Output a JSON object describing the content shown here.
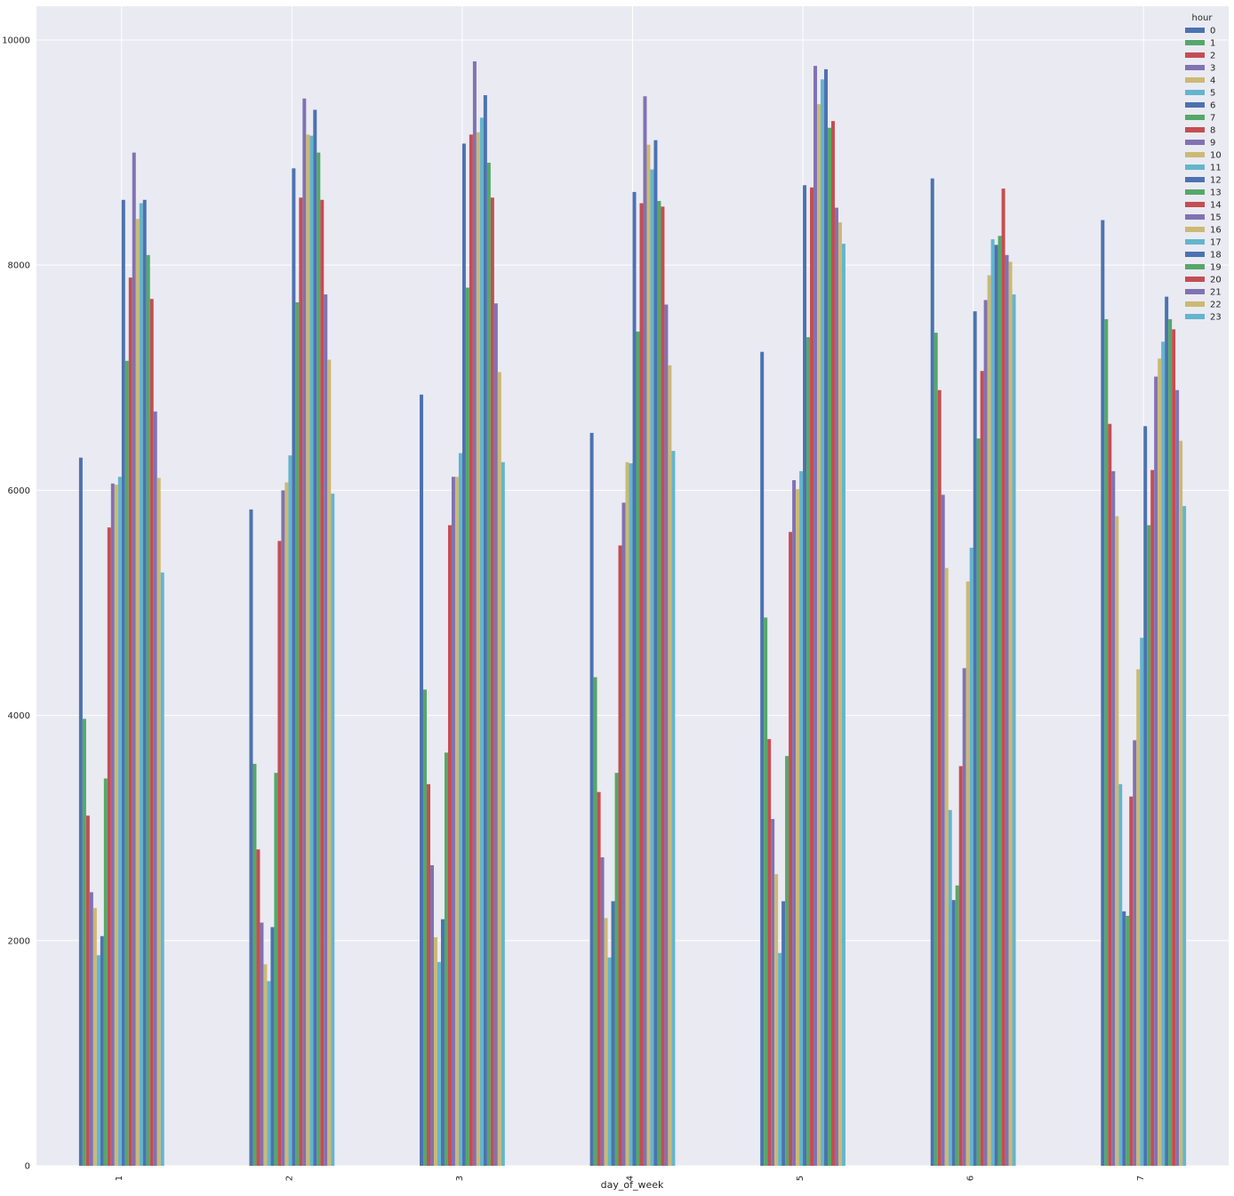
{
  "chart_data": {
    "type": "bar",
    "xlabel": "day_of_week",
    "ylabel": "",
    "ylim": [
      0,
      10300
    ],
    "yticks": [
      0,
      2000,
      4000,
      6000,
      8000,
      10000
    ],
    "grid": true,
    "legend_title": "hour",
    "legend_position": "top-right",
    "palette": [
      "#4c72b0",
      "#55a868",
      "#c44e52",
      "#8172b2",
      "#ccb974",
      "#64b5cd"
    ],
    "categories": [
      "1",
      "2",
      "3",
      "4",
      "5",
      "6",
      "7"
    ],
    "series": [
      {
        "name": "0",
        "values": [
          6290,
          5830,
          6850,
          6510,
          7230,
          8770,
          8400
        ]
      },
      {
        "name": "1",
        "values": [
          3970,
          3570,
          4230,
          4340,
          4870,
          7400,
          7520
        ]
      },
      {
        "name": "2",
        "values": [
          3110,
          2810,
          3390,
          3320,
          3790,
          6890,
          6590
        ]
      },
      {
        "name": "3",
        "values": [
          2430,
          2160,
          2670,
          2740,
          3080,
          5960,
          6170
        ]
      },
      {
        "name": "4",
        "values": [
          2290,
          1790,
          2030,
          2200,
          2590,
          5310,
          5770
        ]
      },
      {
        "name": "5",
        "values": [
          1870,
          1640,
          1810,
          1850,
          1890,
          3160,
          3390
        ]
      },
      {
        "name": "6",
        "values": [
          2040,
          2120,
          2190,
          2350,
          2350,
          2360,
          2260
        ]
      },
      {
        "name": "7",
        "values": [
          3440,
          3490,
          3670,
          3490,
          3640,
          2490,
          2220
        ]
      },
      {
        "name": "8",
        "values": [
          5670,
          5550,
          5690,
          5510,
          5630,
          3550,
          3280
        ]
      },
      {
        "name": "9",
        "values": [
          6060,
          6000,
          6120,
          5890,
          6090,
          4420,
          3780
        ]
      },
      {
        "name": "10",
        "values": [
          6050,
          6070,
          6120,
          6250,
          6010,
          5190,
          4410
        ]
      },
      {
        "name": "11",
        "values": [
          6120,
          6310,
          6330,
          6240,
          6170,
          5490,
          4690
        ]
      },
      {
        "name": "12",
        "values": [
          8580,
          8860,
          9080,
          8650,
          8710,
          7590,
          6570
        ]
      },
      {
        "name": "13",
        "values": [
          7150,
          7670,
          7800,
          7410,
          7360,
          6460,
          5690
        ]
      },
      {
        "name": "14",
        "values": [
          7890,
          8600,
          9160,
          8550,
          8690,
          7060,
          6180
        ]
      },
      {
        "name": "15",
        "values": [
          9000,
          9480,
          9810,
          9500,
          9770,
          7690,
          7010
        ]
      },
      {
        "name": "16",
        "values": [
          8410,
          9160,
          9180,
          9070,
          9430,
          7910,
          7170
        ]
      },
      {
        "name": "17",
        "values": [
          8550,
          9150,
          9310,
          8850,
          9650,
          8230,
          7320
        ]
      },
      {
        "name": "18",
        "values": [
          8580,
          9380,
          9510,
          9110,
          9740,
          8180,
          7720
        ]
      },
      {
        "name": "19",
        "values": [
          8090,
          9000,
          8910,
          8570,
          9220,
          8260,
          7520
        ]
      },
      {
        "name": "20",
        "values": [
          7700,
          8580,
          8600,
          8520,
          9280,
          8680,
          7430
        ]
      },
      {
        "name": "21",
        "values": [
          6700,
          7740,
          7660,
          7650,
          8510,
          8090,
          6890
        ]
      },
      {
        "name": "22",
        "values": [
          6110,
          7160,
          7050,
          7110,
          8380,
          8030,
          6440
        ]
      },
      {
        "name": "23",
        "values": [
          5270,
          5970,
          6250,
          6350,
          8190,
          7740,
          5860
        ]
      }
    ]
  }
}
